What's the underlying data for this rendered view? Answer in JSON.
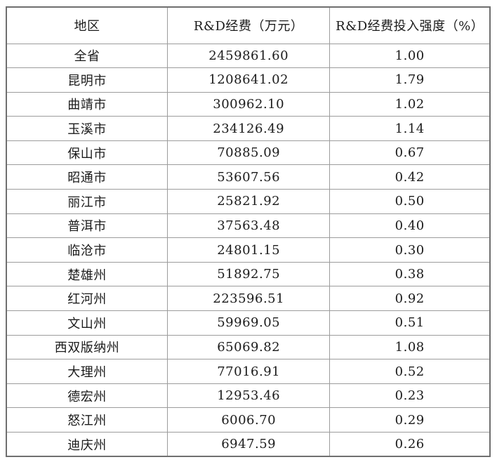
{
  "table": {
    "columns": [
      "地区",
      "R&D经费（万元）",
      "R&D经费投入强度（%）"
    ],
    "rows": [
      [
        "全省",
        "2459861.60",
        "1.00"
      ],
      [
        "昆明市",
        "1208641.02",
        "1.79"
      ],
      [
        "曲靖市",
        "300962.10",
        "1.02"
      ],
      [
        "玉溪市",
        "234126.49",
        "1.14"
      ],
      [
        "保山市",
        "70885.09",
        "0.67"
      ],
      [
        "昭通市",
        "53607.56",
        "0.42"
      ],
      [
        "丽江市",
        "25821.92",
        "0.50"
      ],
      [
        "普洱市",
        "37563.48",
        "0.40"
      ],
      [
        "临沧市",
        "24801.15",
        "0.30"
      ],
      [
        "楚雄州",
        "51892.75",
        "0.38"
      ],
      [
        "红河州",
        "223596.51",
        "0.92"
      ],
      [
        "文山州",
        "59969.05",
        "0.51"
      ],
      [
        "西双版纳州",
        "65069.82",
        "1.08"
      ],
      [
        "大理州",
        "77016.91",
        "0.52"
      ],
      [
        "德宏州",
        "12953.46",
        "0.23"
      ],
      [
        "怒江州",
        "6006.70",
        "0.29"
      ],
      [
        "迪庆州",
        "6947.59",
        "0.26"
      ]
    ],
    "colors": {
      "outer_border": "#6f6f6f",
      "inner_border": "#9c9c9c",
      "text": "#1b1b1b",
      "background": "#ffffff"
    }
  }
}
